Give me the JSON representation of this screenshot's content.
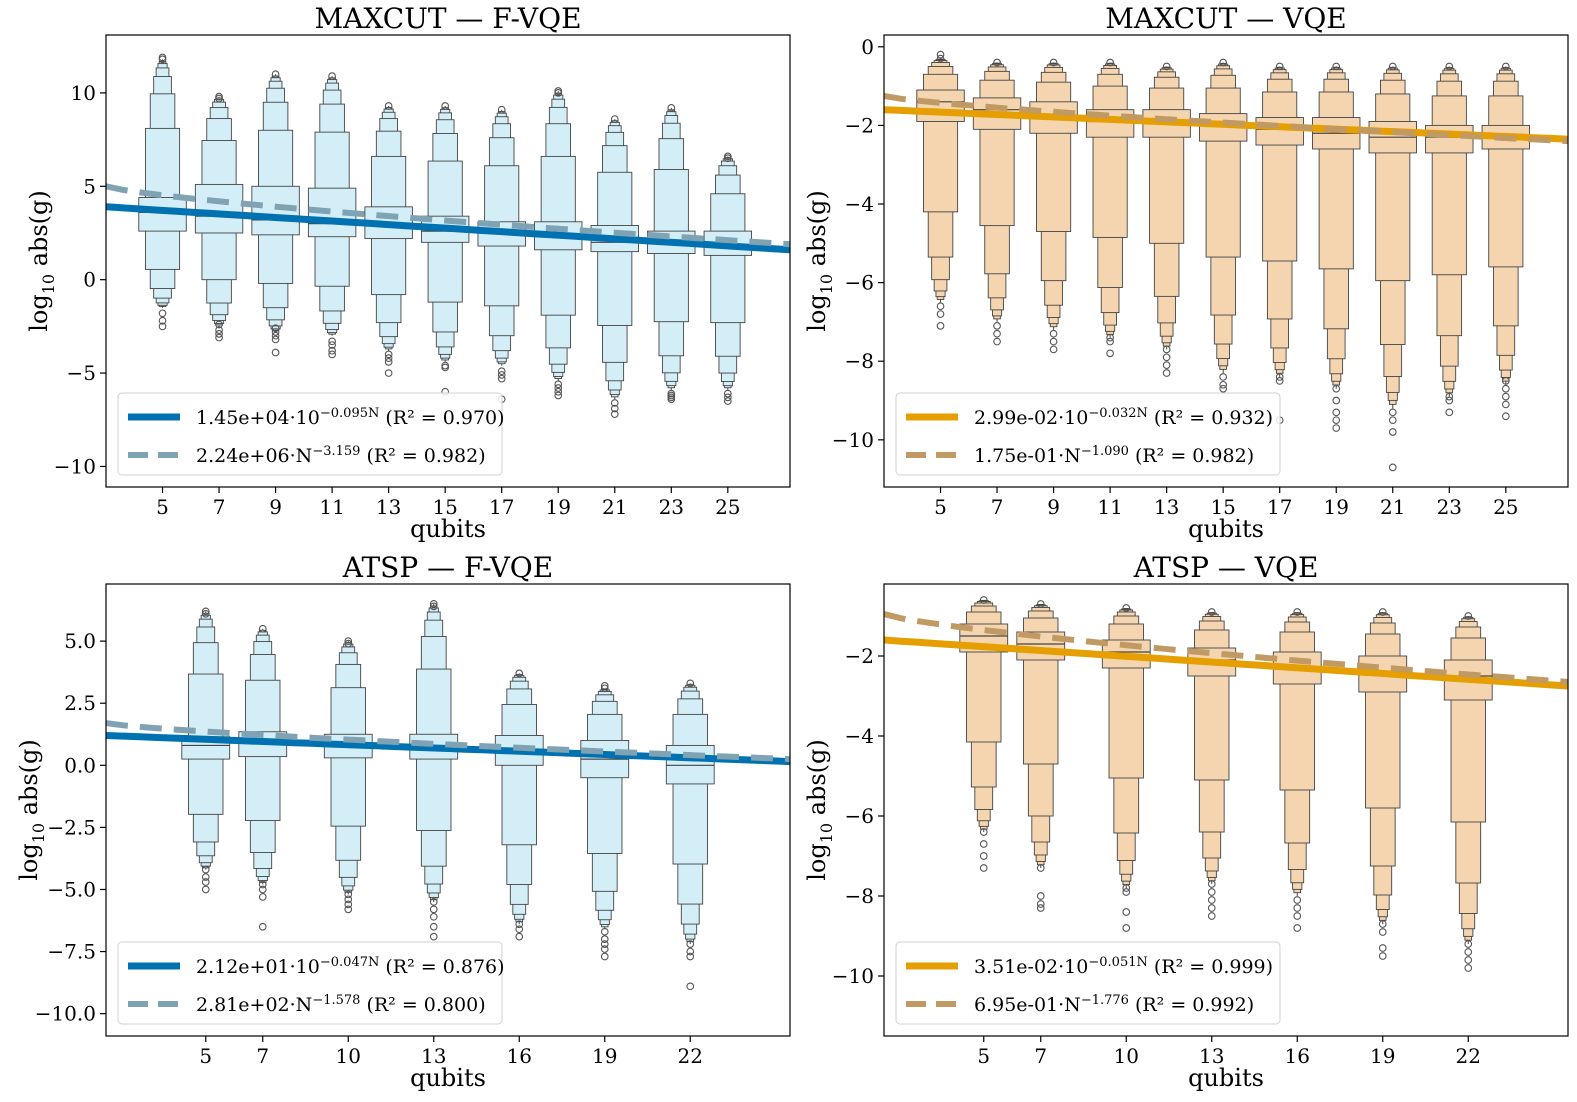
{
  "chart_data": [
    {
      "type": "boxen",
      "title": "MAXCUT — F-VQE",
      "xlabel": "qubits",
      "ylabel_parts": {
        "prefix": "log",
        "sub": "10",
        "suffix": " abs(g)"
      },
      "categories": [
        "5",
        "7",
        "9",
        "11",
        "13",
        "15",
        "17",
        "19",
        "21",
        "23",
        "25"
      ],
      "x_values": [
        5,
        7,
        9,
        11,
        13,
        15,
        17,
        19,
        21,
        23,
        25
      ],
      "xlim": [
        3,
        27.2
      ],
      "ylim": [
        -11.1,
        13.1
      ],
      "yticks": [
        10,
        5,
        0,
        -5,
        -10
      ],
      "ytick_labels": [
        "10",
        "5",
        "0",
        "−5",
        "−10"
      ],
      "box_fill": "#d4eef8",
      "line_color": "#0072b2",
      "dash_color": "#7fa3b3",
      "series": [
        {
          "x": 5,
          "median": 3.6,
          "q1": 2.6,
          "q3": 4.4,
          "min": -1.5,
          "max": 11.8,
          "outliers": [
            -1.8,
            -2.2,
            -2.5,
            11.8,
            11.9
          ]
        },
        {
          "x": 7,
          "median": 3.4,
          "q1": 2.5,
          "q3": 5.1,
          "min": -2.5,
          "max": 9.8,
          "outliers": [
            -2.4,
            -2.7,
            -2.9,
            -3.1,
            9.7,
            9.8
          ]
        },
        {
          "x": 9,
          "median": 3.2,
          "q1": 2.4,
          "q3": 5.0,
          "min": -2.8,
          "max": 11.0,
          "outliers": [
            -2.6,
            -2.8,
            -3.0,
            -3.2,
            -3.9,
            11.0
          ]
        },
        {
          "x": 11,
          "median": 3.0,
          "q1": 2.3,
          "q3": 4.9,
          "min": -3.0,
          "max": 10.9,
          "outliers": [
            -3.3,
            -3.5,
            -3.8,
            -4.0,
            10.9
          ]
        },
        {
          "x": 13,
          "median": 2.9,
          "q1": 2.2,
          "q3": 3.9,
          "min": -3.8,
          "max": 9.3,
          "outliers": [
            -4.0,
            -4.2,
            -4.4,
            -5.0,
            9.3
          ]
        },
        {
          "x": 15,
          "median": 2.6,
          "q1": 2.0,
          "q3": 3.4,
          "min": -4.4,
          "max": 9.3,
          "outliers": [
            -4.6,
            -4.7,
            -6.0,
            9.3
          ]
        },
        {
          "x": 17,
          "median": 2.6,
          "q1": 1.8,
          "q3": 3.1,
          "min": -4.6,
          "max": 9.1,
          "outliers": [
            -4.9,
            -5.1,
            -5.3,
            -6.4,
            9.1
          ]
        },
        {
          "x": 19,
          "median": 2.4,
          "q1": 1.6,
          "q3": 3.1,
          "min": -5.4,
          "max": 10.1,
          "outliers": [
            -5.6,
            -5.8,
            -6.0,
            -6.2,
            10.0,
            10.1
          ]
        },
        {
          "x": 21,
          "median": 2.0,
          "q1": 1.5,
          "q3": 2.9,
          "min": -6.4,
          "max": 8.6,
          "outliers": [
            -6.6,
            -6.9,
            -7.2,
            8.6
          ]
        },
        {
          "x": 23,
          "median": 2.0,
          "q1": 1.4,
          "q3": 2.6,
          "min": -5.9,
          "max": 9.2,
          "outliers": [
            -6.1,
            -6.2,
            -6.3,
            -6.4,
            9.2
          ]
        },
        {
          "x": 25,
          "median": 1.8,
          "q1": 1.3,
          "q3": 2.6,
          "min": -5.9,
          "max": 6.6,
          "outliers": [
            -6.1,
            -6.3,
            -6.5,
            6.5,
            6.6
          ]
        }
      ],
      "fits": [
        {
          "kind": "exponential",
          "a": 14500,
          "b": 0.095,
          "label_main": "1.45e+04·10",
          "label_sup": "−0.095N",
          "label_r2": " (R² = 0.970)"
        },
        {
          "kind": "power",
          "a": 2240000,
          "b": 3.159,
          "label_main": "2.24e+06·N",
          "label_sup": "−3.159",
          "label_r2": " (R² = 0.982)"
        }
      ],
      "fit_display_anchors": [
        [
          3,
          3.9,
          27.2,
          1.6
        ],
        [
          3,
          5.0,
          27.2,
          1.9
        ]
      ]
    },
    {
      "type": "boxen",
      "title": "MAXCUT — VQE",
      "xlabel": "qubits",
      "ylabel_parts": {
        "prefix": "log",
        "sub": "10",
        "suffix": " abs(g)"
      },
      "categories": [
        "5",
        "7",
        "9",
        "11",
        "13",
        "15",
        "17",
        "19",
        "21",
        "23",
        "25"
      ],
      "x_values": [
        5,
        7,
        9,
        11,
        13,
        15,
        17,
        19,
        21,
        23,
        25
      ],
      "xlim": [
        3,
        27.2
      ],
      "ylim": [
        -11.2,
        0.3
      ],
      "yticks": [
        0,
        -2,
        -4,
        -6,
        -8,
        -10
      ],
      "ytick_labels": [
        "0",
        "−2",
        "−4",
        "−6",
        "−8",
        "−10"
      ],
      "box_fill": "#f5d5b0",
      "line_color": "#e69f00",
      "dash_color": "#c19a63",
      "series": [
        {
          "x": 5,
          "median": -1.4,
          "q1": -1.9,
          "q3": -1.1,
          "min": -6.5,
          "max": -0.3,
          "outliers": [
            -6.6,
            -6.8,
            -7.1,
            -0.2,
            -0.3
          ]
        },
        {
          "x": 7,
          "median": -1.6,
          "q1": -2.1,
          "q3": -1.3,
          "min": -7.0,
          "max": -0.4,
          "outliers": [
            -7.1,
            -7.3,
            -7.5,
            -0.4
          ]
        },
        {
          "x": 9,
          "median": -1.8,
          "q1": -2.2,
          "q3": -1.4,
          "min": -7.2,
          "max": -0.4,
          "outliers": [
            -7.3,
            -7.5,
            -7.7,
            -0.4
          ]
        },
        {
          "x": 11,
          "median": -1.9,
          "q1": -2.3,
          "q3": -1.6,
          "min": -7.4,
          "max": -0.4,
          "outliers": [
            -7.4,
            -7.5,
            -7.8,
            -0.4
          ]
        },
        {
          "x": 13,
          "median": -1.9,
          "q1": -2.3,
          "q3": -1.6,
          "min": -7.7,
          "max": -0.5,
          "outliers": [
            -7.7,
            -7.9,
            -8.1,
            -8.3,
            -0.5
          ]
        },
        {
          "x": 15,
          "median": -2.0,
          "q1": -2.4,
          "q3": -1.7,
          "min": -8.3,
          "max": -0.4,
          "outliers": [
            -8.4,
            -8.6,
            -8.7,
            -0.4
          ]
        },
        {
          "x": 17,
          "median": -2.1,
          "q1": -2.5,
          "q3": -1.8,
          "min": -8.4,
          "max": -0.5,
          "outliers": [
            -8.4,
            -8.5,
            -9.5,
            -0.5
          ]
        },
        {
          "x": 19,
          "median": -2.2,
          "q1": -2.6,
          "q3": -1.8,
          "min": -8.7,
          "max": -0.5,
          "outliers": [
            -8.7,
            -9.0,
            -9.3,
            -9.5,
            -9.7,
            -0.5
          ]
        },
        {
          "x": 21,
          "median": -2.3,
          "q1": -2.7,
          "q3": -1.9,
          "min": -9.2,
          "max": -0.5,
          "outliers": [
            -9.3,
            -9.5,
            -9.8,
            -10.7,
            -0.5
          ]
        },
        {
          "x": 23,
          "median": -2.3,
          "q1": -2.7,
          "q3": -2.0,
          "min": -8.9,
          "max": -0.5,
          "outliers": [
            -8.9,
            -9.0,
            -9.3,
            -0.5
          ]
        },
        {
          "x": 25,
          "median": -2.3,
          "q1": -2.6,
          "q3": -2.0,
          "min": -8.6,
          "max": -0.5,
          "outliers": [
            -8.5,
            -8.7,
            -8.9,
            -9.1,
            -9.4,
            -0.5
          ]
        }
      ],
      "fits": [
        {
          "kind": "exponential",
          "a": 0.0299,
          "b": 0.032,
          "label_main": "2.99e-02·10",
          "label_sup": "−0.032N",
          "label_r2": " (R² = 0.932)"
        },
        {
          "kind": "power",
          "a": 0.175,
          "b": 1.09,
          "label_main": "1.75e-01·N",
          "label_sup": "−1.090",
          "label_r2": " (R² = 0.982)"
        }
      ],
      "fit_display_anchors": [
        [
          3,
          -1.6,
          27.2,
          -2.35
        ],
        [
          3,
          -1.25,
          27.2,
          -2.4
        ]
      ]
    },
    {
      "type": "boxen",
      "title": "ATSP — F-VQE",
      "xlabel": "qubits",
      "ylabel_parts": {
        "prefix": "log",
        "sub": "10",
        "suffix": " abs(g)"
      },
      "categories": [
        "5",
        "7",
        "10",
        "13",
        "16",
        "19",
        "22"
      ],
      "x_values": [
        5,
        7,
        10,
        13,
        16,
        19,
        22
      ],
      "xlim": [
        1.5,
        25.5
      ],
      "ylim": [
        -10.9,
        7.3
      ],
      "yticks": [
        5.0,
        2.5,
        0.0,
        -2.5,
        -5.0,
        -7.5,
        -10.0
      ],
      "ytick_labels": [
        "5.0",
        "2.5",
        "0.0",
        "−2.5",
        "−5.0",
        "−7.5",
        "−10.0"
      ],
      "box_fill": "#d4eef8",
      "line_color": "#0072b2",
      "dash_color": "#7fa3b3",
      "series": [
        {
          "x": 5,
          "median": 0.8,
          "q1": 0.25,
          "q3": 1.15,
          "min": -4.2,
          "max": 6.2,
          "outliers": [
            -4.2,
            -4.5,
            -4.7,
            -5.0,
            6.1,
            6.2
          ]
        },
        {
          "x": 7,
          "median": 0.9,
          "q1": 0.35,
          "q3": 1.35,
          "min": -4.8,
          "max": 5.5,
          "outliers": [
            -4.8,
            -5.0,
            -5.3,
            -6.5,
            5.5
          ]
        },
        {
          "x": 10,
          "median": 0.8,
          "q1": 0.3,
          "q3": 1.25,
          "min": -5.2,
          "max": 5.0,
          "outliers": [
            -5.2,
            -5.4,
            -5.6,
            -5.8,
            4.9,
            5.0
          ]
        },
        {
          "x": 13,
          "median": 0.7,
          "q1": 0.25,
          "q3": 1.25,
          "min": -5.5,
          "max": 6.5,
          "outliers": [
            -5.5,
            -5.8,
            -6.1,
            -6.5,
            -6.9,
            6.4,
            6.5
          ]
        },
        {
          "x": 16,
          "median": 0.6,
          "q1": 0.0,
          "q3": 1.2,
          "min": -6.4,
          "max": 3.7,
          "outliers": [
            -6.4,
            -6.6,
            -6.9,
            3.7
          ]
        },
        {
          "x": 19,
          "median": 0.25,
          "q1": -0.5,
          "q3": 1.0,
          "min": -6.6,
          "max": 3.1,
          "outliers": [
            -6.7,
            -7.0,
            -7.2,
            -7.4,
            -7.7,
            3.1,
            3.2
          ]
        },
        {
          "x": 22,
          "median": 0.0,
          "q1": -0.75,
          "q3": 0.8,
          "min": -7.2,
          "max": 3.3,
          "outliers": [
            -7.2,
            -7.5,
            -7.7,
            -8.9,
            3.3
          ]
        }
      ],
      "fits": [
        {
          "kind": "exponential",
          "a": 21.2,
          "b": 0.047,
          "label_main": "2.12e+01·10",
          "label_sup": "−0.047N",
          "label_r2": " (R² = 0.876)"
        },
        {
          "kind": "power",
          "a": 281,
          "b": 1.578,
          "label_main": "2.81e+02·N",
          "label_sup": "−1.578",
          "label_r2": " (R² = 0.800)"
        }
      ],
      "fit_display_anchors": [
        [
          1.5,
          1.2,
          25.5,
          0.15
        ],
        [
          1.5,
          1.7,
          25.5,
          0.25
        ]
      ]
    },
    {
      "type": "boxen",
      "title": "ATSP — VQE",
      "xlabel": "qubits",
      "ylabel_parts": {
        "prefix": "log",
        "sub": "10",
        "suffix": " abs(g)"
      },
      "categories": [
        "5",
        "7",
        "10",
        "13",
        "16",
        "19",
        "22"
      ],
      "x_values": [
        5,
        7,
        10,
        13,
        16,
        19,
        22
      ],
      "xlim": [
        1.5,
        25.5
      ],
      "ylim": [
        -11.5,
        -0.2
      ],
      "yticks": [
        -2,
        -4,
        -6,
        -8,
        -10
      ],
      "ytick_labels": [
        "−2",
        "−4",
        "−6",
        "−8",
        "−10"
      ],
      "box_fill": "#f5d5b0",
      "line_color": "#e69f00",
      "dash_color": "#c19a63",
      "series": [
        {
          "x": 5,
          "median": -1.5,
          "q1": -1.9,
          "q3": -1.2,
          "min": -6.4,
          "max": -0.6,
          "outliers": [
            -6.4,
            -6.7,
            -7.0,
            -7.3,
            -0.6
          ]
        },
        {
          "x": 7,
          "median": -1.7,
          "q1": -2.1,
          "q3": -1.4,
          "min": -7.3,
          "max": -0.7,
          "outliers": [
            -7.3,
            -8.0,
            -8.2,
            -8.3,
            -0.7
          ]
        },
        {
          "x": 10,
          "median": -1.9,
          "q1": -2.3,
          "q3": -1.6,
          "min": -7.8,
          "max": -0.8,
          "outliers": [
            -7.8,
            -7.9,
            -8.4,
            -8.8,
            -0.8
          ]
        },
        {
          "x": 13,
          "median": -2.1,
          "q1": -2.5,
          "q3": -1.8,
          "min": -7.7,
          "max": -0.9,
          "outliers": [
            -7.7,
            -7.9,
            -8.1,
            -8.3,
            -8.5,
            -0.9
          ]
        },
        {
          "x": 16,
          "median": -2.3,
          "q1": -2.7,
          "q3": -1.9,
          "min": -8.0,
          "max": -0.9,
          "outliers": [
            -8.1,
            -8.3,
            -8.5,
            -8.8,
            -0.9
          ]
        },
        {
          "x": 19,
          "median": -2.4,
          "q1": -2.9,
          "q3": -2.0,
          "min": -8.7,
          "max": -0.9,
          "outliers": [
            -8.7,
            -8.9,
            -9.3,
            -9.5,
            -0.9
          ]
        },
        {
          "x": 22,
          "median": -2.5,
          "q1": -3.1,
          "q3": -2.1,
          "min": -9.2,
          "max": -1.0,
          "outliers": [
            -9.2,
            -9.4,
            -9.6,
            -9.8,
            -1.0
          ]
        }
      ],
      "fits": [
        {
          "kind": "exponential",
          "a": 0.0351,
          "b": 0.051,
          "label_main": "3.51e-02·10",
          "label_sup": "−0.051N",
          "label_r2": " (R² = 0.999)"
        },
        {
          "kind": "power",
          "a": 0.695,
          "b": 1.776,
          "label_main": "6.95e-01·N",
          "label_sup": "−1.776",
          "label_r2": " (R² = 0.992)"
        }
      ],
      "fit_display_anchors": [
        [
          1.5,
          -1.6,
          25.5,
          -2.75
        ],
        [
          1.5,
          -0.95,
          25.5,
          -2.65
        ]
      ]
    }
  ]
}
